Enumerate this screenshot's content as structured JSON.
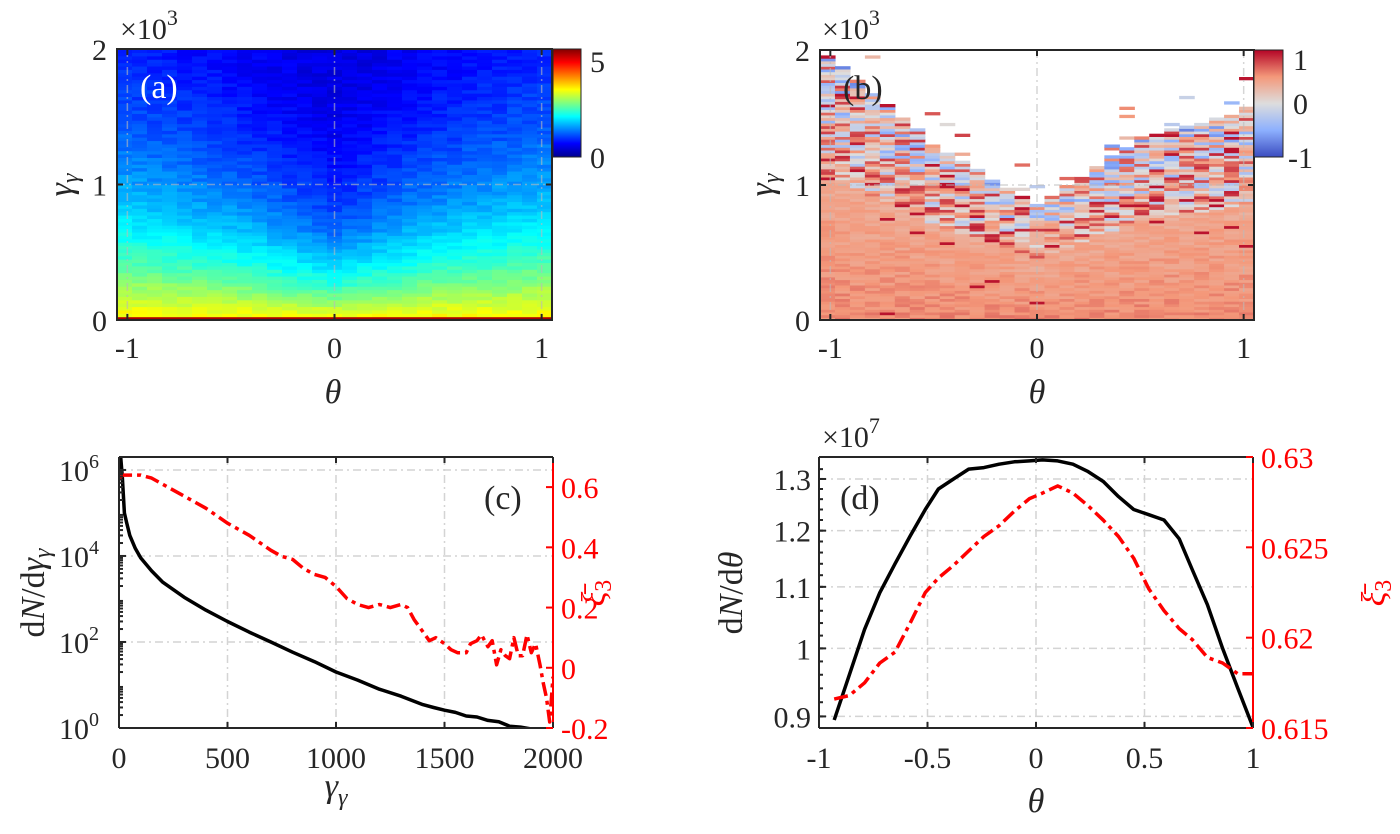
{
  "chart_data": [
    {
      "id": "a",
      "type": "heatmap",
      "panel_label": "(a)",
      "title": "",
      "xlabel": "θ",
      "ylabel": "γγ",
      "ylabel_main": "γ",
      "ylabel_sub": "γ",
      "xlim": [
        -1.05,
        1.05
      ],
      "ylim": [
        0,
        2000
      ],
      "y_exponent_label": "×10",
      "y_exponent_power": "3",
      "xticks": [
        -1,
        0,
        1
      ],
      "xticklabels": [
        "-1",
        "0",
        "1"
      ],
      "yticks": [
        0,
        1000,
        2000
      ],
      "yticklabels": [
        "0",
        "1",
        "2"
      ],
      "colormap": "jet",
      "colorbar": {
        "ticks": [
          0,
          5
        ],
        "ticklabels": [
          "0",
          "5"
        ],
        "range": [
          0,
          6
        ]
      },
      "description": "Photon count density vs angle and energy; high (yellow-red) near γγ≈0, decreasing upward; V-shaped dark region centered at θ=0 reaching down to ~γγ≈1000; wings reach ~γγ≈1800 at |θ|≈1",
      "boundary_profile": {
        "theta": [
          -1,
          -0.5,
          0,
          0.5,
          1
        ],
        "gamma_at_zero_level": [
          1800,
          1400,
          900,
          1400,
          1800
        ]
      },
      "label_color": "#ffffff"
    },
    {
      "id": "b",
      "type": "heatmap",
      "panel_label": "(b)",
      "xlabel": "θ",
      "ylabel": "γγ",
      "ylabel_main": "γ",
      "ylabel_sub": "γ",
      "xlim": [
        -1.05,
        1.05
      ],
      "ylim": [
        0,
        2000
      ],
      "y_exponent_label": "×10",
      "y_exponent_power": "3",
      "xticks": [
        -1,
        0,
        1
      ],
      "xticklabels": [
        "-1",
        "0",
        "1"
      ],
      "yticks": [
        0,
        1000,
        2000
      ],
      "yticklabels": [
        "0",
        "1",
        "2"
      ],
      "colormap": "coolwarm",
      "colorbar": {
        "ticks": [
          -1,
          0,
          1
        ],
        "ticklabels": [
          "-1",
          "0",
          "1"
        ],
        "range": [
          -1,
          1
        ]
      },
      "description": "Mean polarization ξ3 per bin; ~0.5–0.7 (light red) at low γγ, noisy mixed blue/red near the V-shaped upper boundary; empty (white) above boundary",
      "boundary_profile": {
        "theta": [
          -1,
          -0.5,
          0,
          0.5,
          1
        ],
        "gamma_max": [
          1950,
          1300,
          850,
          1350,
          1550
        ]
      },
      "label_color": "#262626"
    },
    {
      "id": "c",
      "type": "line",
      "panel_label": "(c)",
      "xlabel": "γγ",
      "ylabel_left": "dN/dγγ",
      "ylabel_right": "ξ̄3",
      "xlim": [
        0,
        2000
      ],
      "xticks": [
        0,
        500,
        1000,
        1500,
        2000
      ],
      "xticklabels": [
        "0",
        "500",
        "1000",
        "1500",
        "2000"
      ],
      "yscale_left": "log",
      "ylim_left": [
        1,
        2000000
      ],
      "yticks_left": [
        1,
        100,
        10000,
        1000000
      ],
      "yticklabels_left_base": [
        "10",
        "10",
        "10",
        "10"
      ],
      "yticklabels_left_exp": [
        "0",
        "2",
        "4",
        "6"
      ],
      "ylim_right": [
        -0.2,
        0.7
      ],
      "yticks_right": [
        -0.2,
        0,
        0.2,
        0.4,
        0.6
      ],
      "yticklabels_right": [
        "-0.2",
        "0",
        "0.2",
        "0.4",
        "0.6"
      ],
      "grid": true,
      "series": [
        {
          "name": "dN/dγγ",
          "axis": "left",
          "color": "#000000",
          "style": "solid",
          "x": [
            8,
            15,
            25,
            35,
            50,
            75,
            100,
            150,
            200,
            300,
            400,
            500,
            600,
            700,
            800,
            900,
            1000,
            1100,
            1200,
            1300,
            1400,
            1450,
            1500,
            1550,
            1600,
            1650,
            1700,
            1750,
            1800,
            1850,
            1900,
            1950,
            1980,
            2000
          ],
          "y": [
            2000000,
            700000,
            100000,
            60000,
            30000,
            15000,
            9000,
            4500,
            2500,
            1100,
            550,
            300,
            170,
            100,
            58,
            35,
            20,
            13,
            8,
            5.5,
            3.5,
            3.0,
            2.6,
            2.3,
            1.9,
            1.8,
            1.5,
            1.4,
            1.1,
            1.05,
            0.95,
            0.9,
            0.75,
            0.6
          ]
        },
        {
          "name": "ξ̄3",
          "axis": "right",
          "color": "#ff0000",
          "style": "dashdot",
          "x": [
            0,
            20,
            50,
            100,
            150,
            200,
            300,
            400,
            500,
            600,
            700,
            750,
            800,
            850,
            900,
            950,
            1000,
            1050,
            1100,
            1150,
            1200,
            1250,
            1300,
            1330,
            1360,
            1400,
            1430,
            1460,
            1500,
            1530,
            1560,
            1600,
            1620,
            1650,
            1670,
            1700,
            1720,
            1740,
            1760,
            1780,
            1800,
            1820,
            1840,
            1860,
            1880,
            1900,
            1920,
            1940,
            1955,
            1970,
            1985,
            2000
          ],
          "y": [
            0.63,
            0.64,
            0.64,
            0.64,
            0.63,
            0.61,
            0.57,
            0.53,
            0.48,
            0.44,
            0.39,
            0.37,
            0.36,
            0.33,
            0.31,
            0.3,
            0.27,
            0.23,
            0.21,
            0.2,
            0.21,
            0.2,
            0.21,
            0.2,
            0.16,
            0.12,
            0.09,
            0.1,
            0.08,
            0.06,
            0.05,
            0.05,
            0.08,
            0.09,
            0.11,
            0.07,
            0.09,
            0.01,
            0.06,
            0.04,
            0.03,
            0.1,
            0.04,
            0.04,
            0.11,
            0.05,
            0.08,
            0.01,
            -0.05,
            -0.1,
            -0.18,
            -0.03
          ]
        }
      ]
    },
    {
      "id": "d",
      "type": "line",
      "panel_label": "(d)",
      "xlabel": "θ",
      "ylabel_left": "dN/dθ",
      "ylabel_right": "ξ̄3",
      "xlim": [
        -1,
        1
      ],
      "xticks": [
        -1,
        -0.5,
        0,
        0.5,
        1
      ],
      "xticklabels": [
        "-1",
        "-0.5",
        "0",
        "0.5",
        "1"
      ],
      "yscale_left": "log",
      "ylim_left": [
        0.884,
        1.345
      ],
      "y_exponent_label": "×10",
      "y_exponent_power": "7",
      "yticks_left": [
        0.9,
        1.0,
        1.1,
        1.2,
        1.3
      ],
      "yticklabels_left": [
        "0.9",
        "1",
        "1.1",
        "1.2",
        "1.3"
      ],
      "ylim_right": [
        0.615,
        0.63
      ],
      "yticks_right": [
        0.615,
        0.62,
        0.625,
        0.63
      ],
      "yticklabels_right": [
        "0.615",
        "0.62",
        "0.625",
        "0.63"
      ],
      "grid": true,
      "series": [
        {
          "name": "dN/dθ",
          "axis": "left",
          "color": "#000000",
          "style": "solid",
          "x": [
            -0.93,
            -0.86,
            -0.79,
            -0.72,
            -0.65,
            -0.58,
            -0.51,
            -0.45,
            -0.38,
            -0.31,
            -0.24,
            -0.17,
            -0.1,
            -0.03,
            0.03,
            0.1,
            0.17,
            0.24,
            0.31,
            0.38,
            0.45,
            0.52,
            0.59,
            0.66,
            0.72,
            0.79,
            0.86,
            0.93,
            1.0
          ],
          "y": [
            0.895,
            0.96,
            1.03,
            1.09,
            1.14,
            1.19,
            1.24,
            1.28,
            1.3,
            1.32,
            1.323,
            1.33,
            1.335,
            1.337,
            1.339,
            1.337,
            1.33,
            1.315,
            1.295,
            1.265,
            1.24,
            1.23,
            1.22,
            1.185,
            1.13,
            1.07,
            1.0,
            0.94,
            0.885
          ]
        },
        {
          "name": "ξ̄3",
          "axis": "right",
          "color": "#ff0000",
          "style": "dashdot",
          "x": [
            -0.93,
            -0.86,
            -0.79,
            -0.72,
            -0.65,
            -0.58,
            -0.51,
            -0.45,
            -0.38,
            -0.31,
            -0.24,
            -0.17,
            -0.1,
            -0.03,
            0.03,
            0.1,
            0.17,
            0.24,
            0.31,
            0.38,
            0.45,
            0.52,
            0.59,
            0.66,
            0.72,
            0.79,
            0.86,
            0.93,
            1.0
          ],
          "y": [
            0.6166,
            0.6168,
            0.6175,
            0.6186,
            0.6192,
            0.6208,
            0.6225,
            0.6233,
            0.624,
            0.6248,
            0.6256,
            0.6262,
            0.627,
            0.6277,
            0.628,
            0.6284,
            0.628,
            0.6273,
            0.6265,
            0.6256,
            0.6244,
            0.6227,
            0.6215,
            0.6205,
            0.6199,
            0.6189,
            0.6186,
            0.618,
            0.618
          ]
        }
      ]
    }
  ]
}
